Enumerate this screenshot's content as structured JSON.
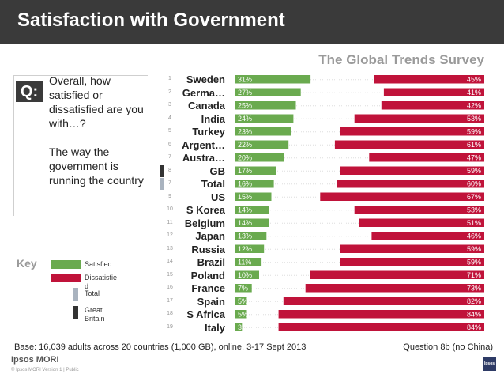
{
  "header": {
    "title": "Satisfaction with Government"
  },
  "survey_label": "The Global Trends Survey",
  "question": {
    "badge": "Q:",
    "text": "Overall, how satisfied or dissatisfied are you with…?",
    "subtext": "The way the government is running the country"
  },
  "key": {
    "title": "Key",
    "items": [
      {
        "label": "Satisfied",
        "color": "#6aaa4f"
      },
      {
        "label": "Dissatisfie d",
        "color": "#c0133a"
      },
      {
        "label": "Total",
        "color": "#a9b3bf"
      },
      {
        "label": "Great Britain",
        "color": "#333333"
      }
    ]
  },
  "colors": {
    "satisfied": "#6aaa4f",
    "dissatisfied": "#c0133a",
    "total_marker": "#a9b3bf",
    "gb_marker": "#333333"
  },
  "chart_data": {
    "type": "bar",
    "categories": [
      "Sweden",
      "Germa…",
      "Canada",
      "India",
      "Turkey",
      "Argent…",
      "Austra…",
      "GB",
      "Total",
      "US",
      "S Korea",
      "Belgium",
      "Japan",
      "Russia",
      "Brazil",
      "Poland",
      "France",
      "Spain",
      "S Africa",
      "Italy"
    ],
    "ranks": [
      "1",
      "2",
      "3",
      "4",
      "5",
      "6",
      "7",
      "8",
      "7",
      "9",
      "10",
      "11",
      "12",
      "13",
      "14",
      "15",
      "16",
      "17",
      "18",
      "19"
    ],
    "markers": [
      "",
      "",
      "",
      "",
      "",
      "",
      "",
      "gb",
      "total",
      "",
      "",
      "",
      "",
      "",
      "",
      "",
      "",
      "",
      "",
      ""
    ],
    "series": [
      {
        "name": "Satisfied",
        "values": [
          31,
          27,
          25,
          24,
          23,
          22,
          20,
          17,
          16,
          15,
          14,
          14,
          13,
          12,
          11,
          10,
          7,
          5,
          5,
          3
        ]
      },
      {
        "name": "Dissatisfied",
        "values": [
          45,
          41,
          42,
          53,
          59,
          61,
          47,
          59,
          60,
          67,
          53,
          51,
          46,
          59,
          59,
          71,
          73,
          82,
          84,
          84
        ]
      }
    ],
    "labels": {
      "satisfied": [
        "31%",
        "27%",
        "25%",
        "24%",
        "23%",
        "22%",
        "20%",
        "17%",
        "16%",
        "15%",
        "14%",
        "14%",
        "13%",
        "12%",
        "11%",
        "10%",
        "7%",
        "5%",
        "5%",
        "3"
      ],
      "dissatisfied": [
        "45%",
        "41%",
        "42%",
        "53%",
        "59%",
        "61%",
        "47%",
        "59%",
        "60%",
        "67%",
        "53%",
        "51%",
        "46%",
        "59%",
        "59%",
        "71%",
        "73%",
        "82%",
        "84%",
        "84%"
      ]
    },
    "xlim": [
      0,
      100
    ]
  },
  "footer": {
    "base": "Base: 16,039 adults across 20 countries (1,000 GB), online, 3-17 Sept 2013",
    "question_ref": "Question 8b (no China)",
    "brand": "Ipsos MORI",
    "meta": "© Ipsos MORI Version 1 | Public",
    "logo": "Ipsos"
  }
}
